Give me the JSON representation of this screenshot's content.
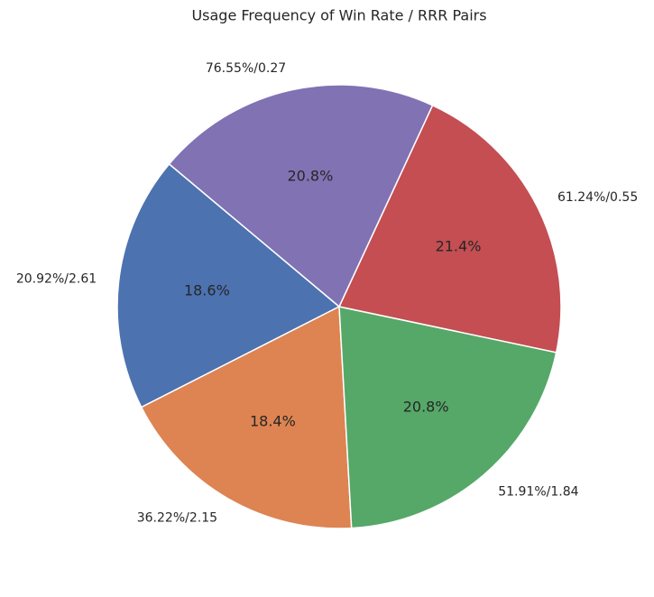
{
  "chart_data": {
    "type": "pie",
    "title": "Usage Frequency of Win Rate / RRR Pairs",
    "categories": [
      "20.92%/2.61",
      "36.22%/2.15",
      "51.91%/1.84",
      "61.24%/0.55",
      "76.55%/0.27"
    ],
    "values": [
      18.6,
      18.4,
      20.8,
      21.4,
      20.8
    ],
    "value_labels": [
      "18.6%",
      "18.4%",
      "20.8%",
      "21.4%",
      "20.8%"
    ],
    "colors": [
      "#4c72b0",
      "#dd8452",
      "#55a868",
      "#c44e52",
      "#8172b3"
    ],
    "start_angle": 140
  }
}
